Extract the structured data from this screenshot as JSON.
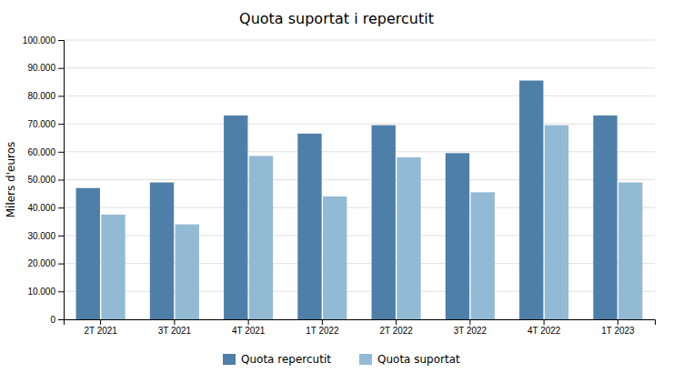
{
  "chart_data": {
    "type": "bar",
    "title": "Quota suportat i repercutit",
    "ylabel": "Milers d'euros",
    "categories": [
      "2T 2021",
      "3T 2021",
      "4T 2021",
      "1T 2022",
      "2T 2022",
      "3T 2022",
      "4T 2022",
      "1T 2023"
    ],
    "series": [
      {
        "name": "Quota repercutit",
        "color": "#4E7FA8",
        "values": [
          47000,
          49000,
          73000,
          66500,
          69500,
          59500,
          85500,
          73000
        ]
      },
      {
        "name": "Quota suportat",
        "color": "#93BAD4",
        "values": [
          37500,
          34000,
          58500,
          44000,
          58000,
          45500,
          69500,
          49000
        ]
      }
    ],
    "ylim": [
      0,
      100000
    ],
    "yticks": [
      0,
      {
        "value": 10000,
        "label": "10.000"
      },
      {
        "value": 20000,
        "label": "20.000"
      },
      {
        "value": 30000,
        "label": "30.000"
      },
      {
        "value": 40000,
        "label": "40.000"
      },
      {
        "value": 50000,
        "label": "50.000"
      },
      {
        "value": 60000,
        "label": "60.000"
      },
      {
        "value": 70000,
        "label": "70.000"
      },
      {
        "value": 80000,
        "label": "80.000"
      },
      {
        "value": 90000,
        "label": "90.000"
      },
      {
        "value": 100000,
        "label": "100.000"
      }
    ],
    "grid": true,
    "legend": "bottom"
  }
}
